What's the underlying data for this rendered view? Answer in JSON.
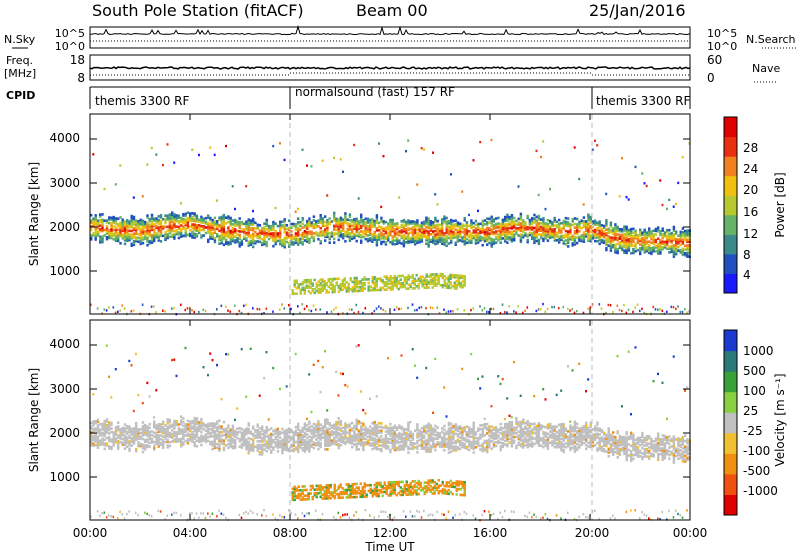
{
  "header": {
    "title": "South Pole Station (fitACF)",
    "beam": "Beam 00",
    "date": "25/Jan/2016"
  },
  "noise_panel": {
    "left_label": "N.Sky",
    "right_label": "N.Search",
    "left_ticks": [
      "10^5",
      "10^0"
    ],
    "right_ticks": [
      "10^5",
      "10^0"
    ]
  },
  "freq_panel": {
    "left_label_1": "Freq.",
    "left_label_2": "[MHz]",
    "right_label": "Nave",
    "left_ticks": [
      "18",
      "8"
    ],
    "right_ticks": [
      "60",
      "0"
    ]
  },
  "cpid": {
    "label": "CPID",
    "segments": [
      {
        "start": 0,
        "end": 8,
        "text": "themis 3300 RF"
      },
      {
        "start": 8,
        "end": 20,
        "text": "normalsound (fast) 157 RF"
      },
      {
        "start": 20,
        "end": 24,
        "text": "themis 3300 RF"
      }
    ]
  },
  "time_axis": {
    "label": "Time UT",
    "ticks": [
      "00:00",
      "04:00",
      "08:00",
      "12:00",
      "16:00",
      "20:00",
      "00:00"
    ]
  },
  "power_panel": {
    "ylabel": "Slant Range [km]",
    "yticks": [
      "1000",
      "2000",
      "3000",
      "4000"
    ],
    "colorbar_label": "Power [dB]",
    "colorbar_ticks": [
      "4",
      "8",
      "12",
      "16",
      "20",
      "24",
      "28"
    ],
    "colors": [
      "#1a1aff",
      "#2050c0",
      "#3a8a8a",
      "#66b266",
      "#b8c830",
      "#f0c010",
      "#f08020",
      "#e83010",
      "#e00000"
    ]
  },
  "velocity_panel": {
    "ylabel": "Slant Range [km]",
    "yticks": [
      "1000",
      "2000",
      "3000",
      "4000"
    ],
    "colorbar_label": "Velocity [m s⁻¹]",
    "colorbar_ticks": [
      "1000",
      "500",
      "100",
      "25",
      "-25",
      "-100",
      "-500",
      "-1000"
    ],
    "colors": [
      "#1a3ad0",
      "#2a7a7a",
      "#3aa03a",
      "#88d040",
      "#c0c0c0",
      "#f0c030",
      "#f09010",
      "#f05010",
      "#e00000"
    ]
  },
  "chart_data": {
    "type": "heatmap",
    "x_unit": "hours UT",
    "xlim": [
      0,
      24
    ],
    "ylim": [
      180,
      4500
    ],
    "scatter_band": [
      {
        "t": 0,
        "range": 2050
      },
      {
        "t": 1,
        "range": 2000
      },
      {
        "t": 2,
        "range": 1950
      },
      {
        "t": 3,
        "range": 2050
      },
      {
        "t": 4,
        "range": 2100
      },
      {
        "t": 5,
        "range": 2000
      },
      {
        "t": 6,
        "range": 1950
      },
      {
        "t": 7,
        "range": 1900
      },
      {
        "t": 8,
        "range": 1900
      },
      {
        "t": 9,
        "range": 2000
      },
      {
        "t": 10,
        "range": 2050
      },
      {
        "t": 11,
        "range": 2000
      },
      {
        "t": 12,
        "range": 1950
      },
      {
        "t": 13,
        "range": 1950
      },
      {
        "t": 14,
        "range": 1950
      },
      {
        "t": 15,
        "range": 1950
      },
      {
        "t": 16,
        "range": 1950
      },
      {
        "t": 17,
        "range": 2050
      },
      {
        "t": 18,
        "range": 2000
      },
      {
        "t": 19,
        "range": 1950
      },
      {
        "t": 20,
        "range": 2000
      },
      {
        "t": 21,
        "range": 1800
      },
      {
        "t": 22,
        "range": 1750
      },
      {
        "t": 23,
        "range": 1750
      },
      {
        "t": 24,
        "range": 1700
      }
    ],
    "near_range_band": [
      {
        "t": 8,
        "range": 750
      },
      {
        "t": 10,
        "range": 800
      },
      {
        "t": 12,
        "range": 850
      },
      {
        "t": 14,
        "range": 900
      },
      {
        "t": 15,
        "range": 850
      }
    ]
  }
}
